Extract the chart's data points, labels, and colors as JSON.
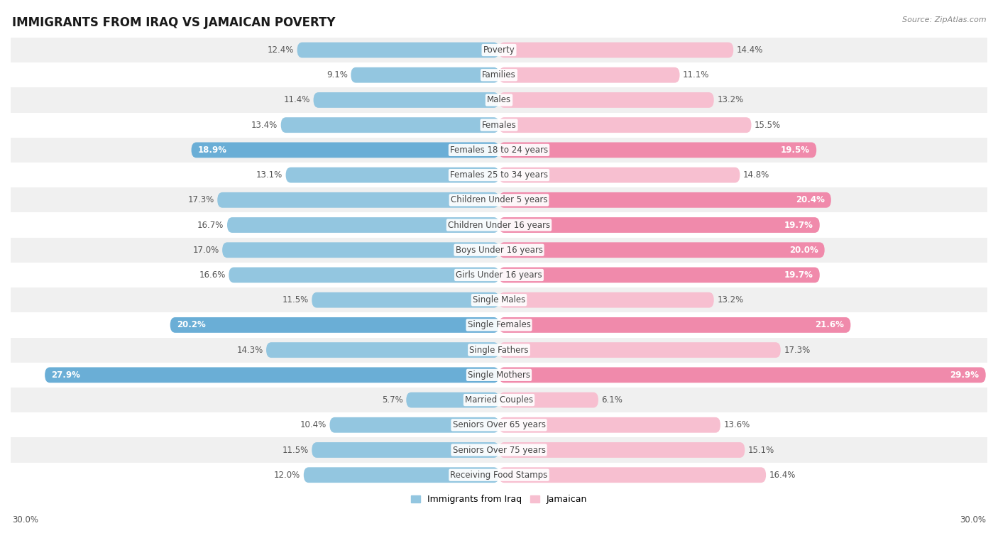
{
  "title": "IMMIGRANTS FROM IRAQ VS JAMAICAN POVERTY",
  "source": "Source: ZipAtlas.com",
  "categories": [
    "Poverty",
    "Families",
    "Males",
    "Females",
    "Females 18 to 24 years",
    "Females 25 to 34 years",
    "Children Under 5 years",
    "Children Under 16 years",
    "Boys Under 16 years",
    "Girls Under 16 years",
    "Single Males",
    "Single Females",
    "Single Fathers",
    "Single Mothers",
    "Married Couples",
    "Seniors Over 65 years",
    "Seniors Over 75 years",
    "Receiving Food Stamps"
  ],
  "iraq_values": [
    12.4,
    9.1,
    11.4,
    13.4,
    18.9,
    13.1,
    17.3,
    16.7,
    17.0,
    16.6,
    11.5,
    20.2,
    14.3,
    27.9,
    5.7,
    10.4,
    11.5,
    12.0
  ],
  "jamaican_values": [
    14.4,
    11.1,
    13.2,
    15.5,
    19.5,
    14.8,
    20.4,
    19.7,
    20.0,
    19.7,
    13.2,
    21.6,
    17.3,
    29.9,
    6.1,
    13.6,
    15.1,
    16.4
  ],
  "iraq_color_normal": "#93c6e0",
  "iraq_color_highlight": "#6aaed6",
  "jamaican_color_normal": "#f7bfd0",
  "jamaican_color_highlight": "#f08aab",
  "iraq_highlight_indices": [
    4,
    11,
    13
  ],
  "jamaican_highlight_indices": [
    4,
    6,
    7,
    8,
    9,
    11,
    13
  ],
  "iraq_label": "Immigrants from Iraq",
  "jamaican_label": "Jamaican",
  "axis_max": 30.0,
  "bar_height": 0.62,
  "row_bg_even": "#f0f0f0",
  "row_bg_odd": "#ffffff",
  "title_fontsize": 12,
  "label_fontsize": 8.5,
  "value_fontsize": 8.5,
  "source_fontsize": 8,
  "bottom_label": "30.0%"
}
